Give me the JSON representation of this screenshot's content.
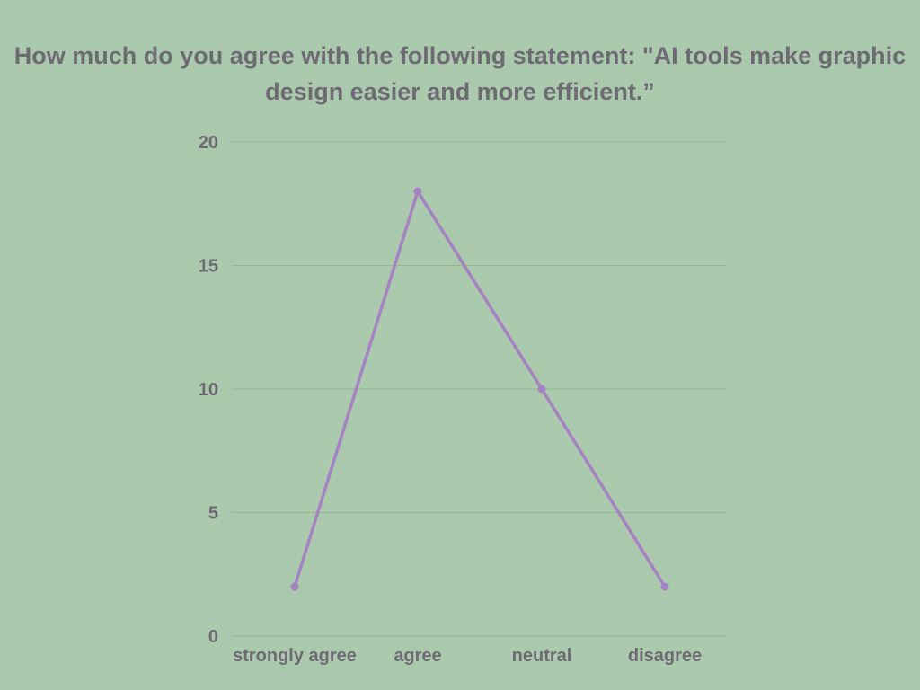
{
  "chart_data": {
    "type": "line",
    "title": "How much do you agree with the following statement: \"AI tools make graphic design easier and more efficient.”",
    "xlabel": "",
    "ylabel": "",
    "categories": [
      "strongly agree",
      "agree",
      "neutral",
      "disagree"
    ],
    "series": [
      {
        "values": [
          2,
          18,
          10,
          2
        ]
      }
    ],
    "ylim": [
      0,
      20
    ],
    "yticks": [
      "0",
      "5",
      "10",
      "15",
      "20"
    ],
    "grid": true,
    "legend": "none",
    "colors": {
      "background": "#abc9ad",
      "line": "#a583c2",
      "text": "#6d6a74",
      "grid": "#96b596"
    }
  }
}
